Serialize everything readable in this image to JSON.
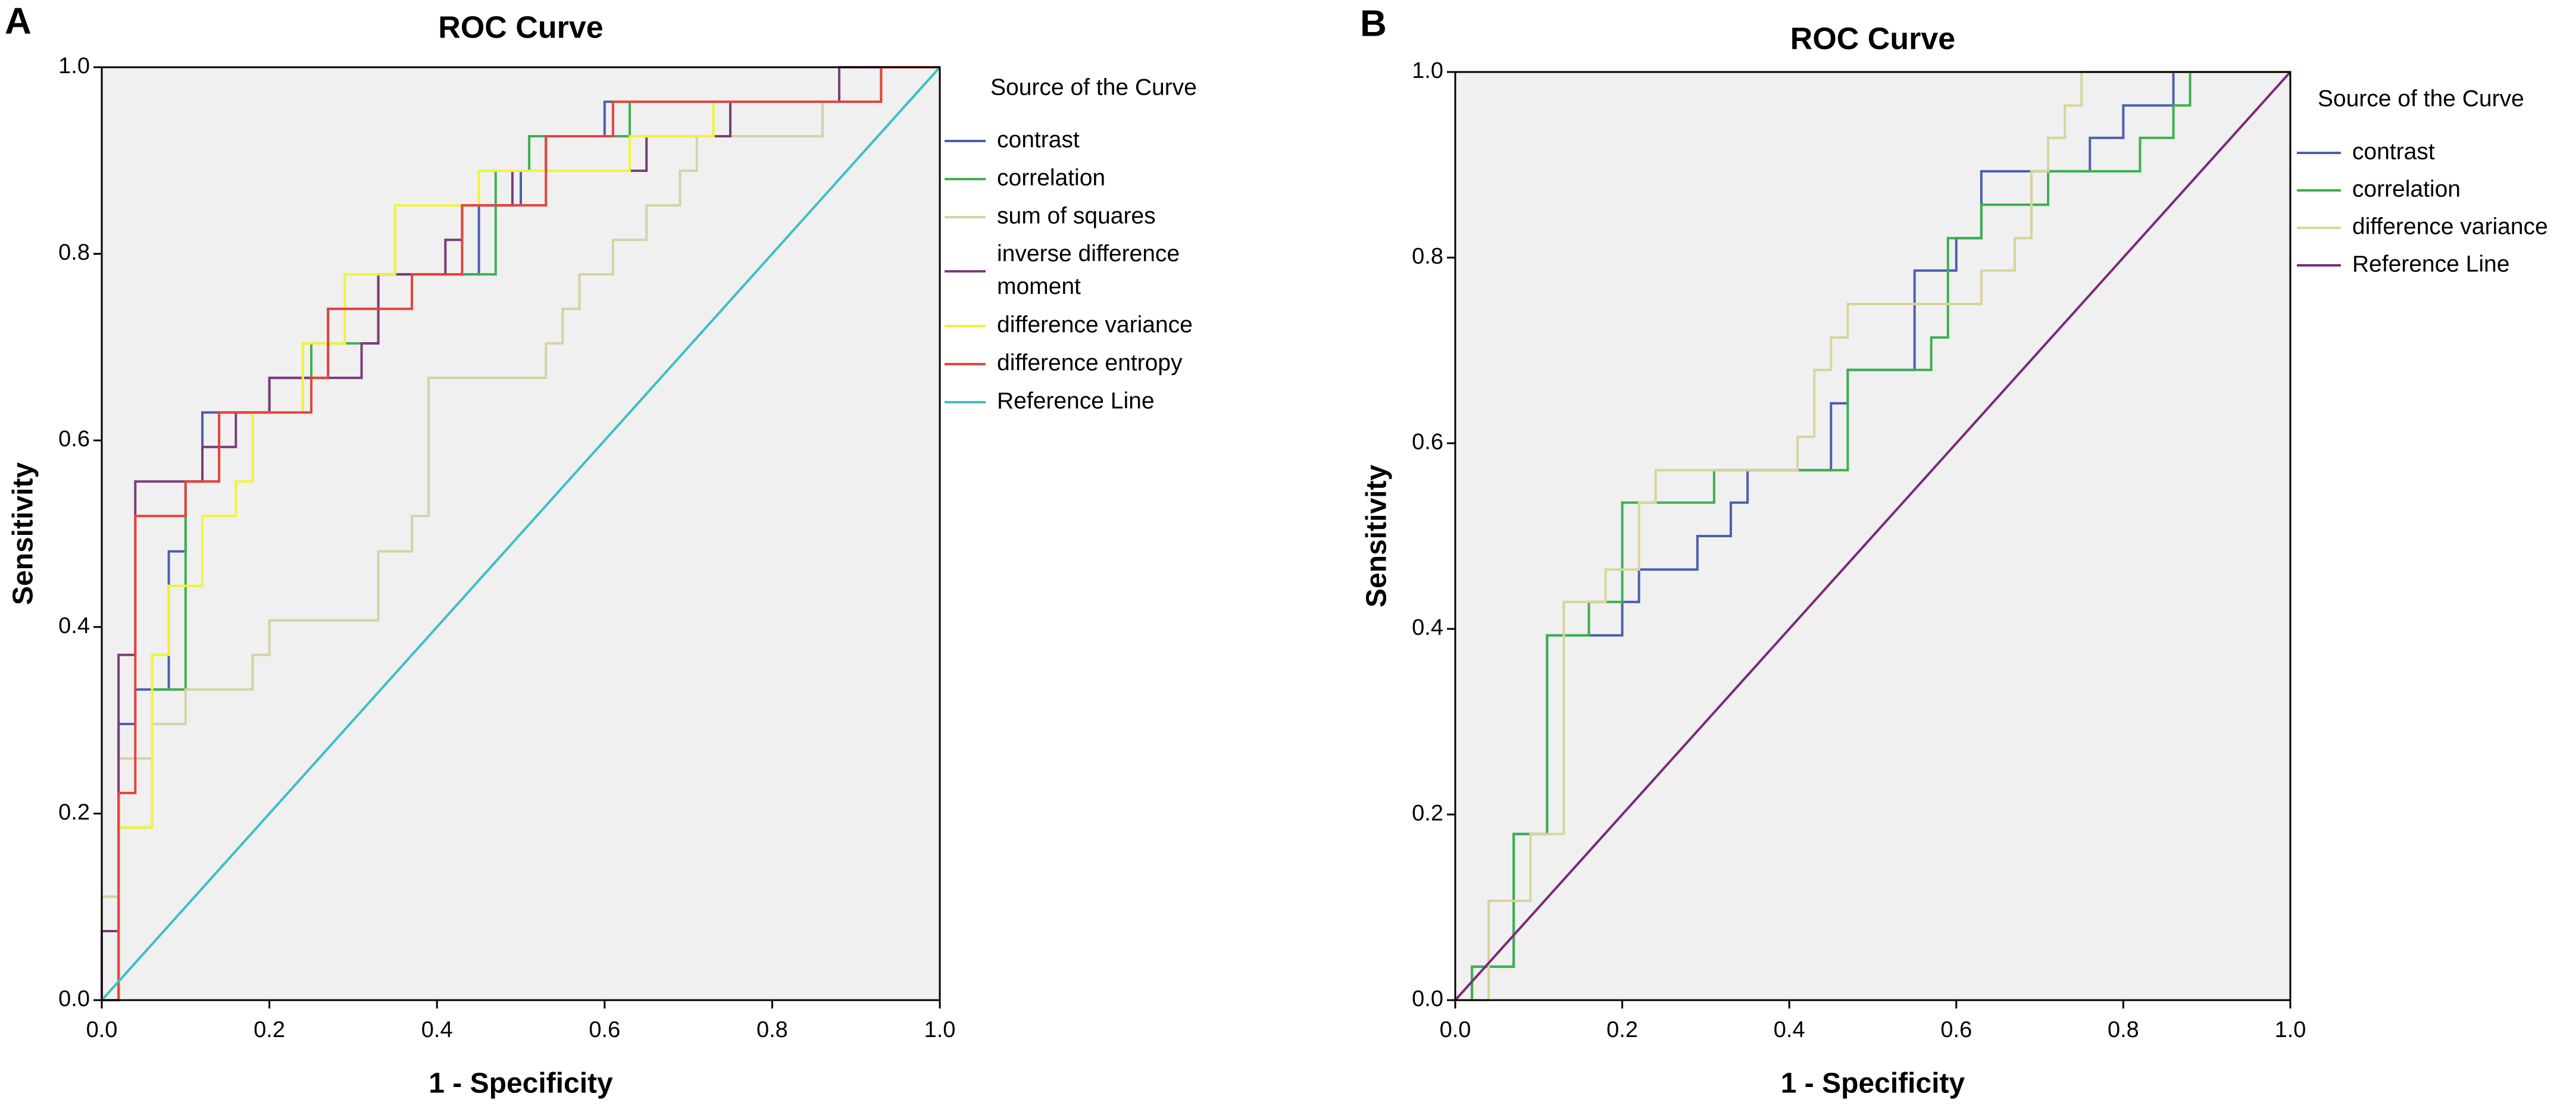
{
  "chart_data": [
    {
      "type": "line",
      "panel": "A",
      "title": "ROC Curve",
      "xlabel": "1 - Specificity",
      "ylabel": "Sensitivity",
      "legend_title": "Source of the Curve",
      "legend": "right",
      "grid": false,
      "xlim": [
        0,
        1
      ],
      "ylim": [
        0,
        1
      ],
      "xticks": [
        {
          "value": 0,
          "label": "0.0"
        },
        0.2,
        0.4,
        0.6,
        0.8,
        {
          "value": 1,
          "label": "1.0"
        }
      ],
      "yticks": [
        {
          "value": 0,
          "label": "0.0"
        },
        0.2,
        0.4,
        0.6,
        0.8,
        {
          "value": 1,
          "label": "1.0"
        }
      ],
      "series": [
        {
          "name": "contrast",
          "color": "#4a5fb0",
          "x": [
            0,
            0.02,
            0.02,
            0.04,
            0.04,
            0.08,
            0.08,
            0.1,
            0.1,
            0.12,
            0.12,
            0.2,
            0.2,
            0.27,
            0.27,
            0.33,
            0.33,
            0.45,
            0.45,
            0.5,
            0.5,
            0.53,
            0.53,
            0.6,
            0.6,
            0.93,
            0.93,
            1
          ],
          "values": [
            0,
            0,
            0.296,
            0.296,
            0.333,
            0.333,
            0.481,
            0.481,
            0.556,
            0.556,
            0.63,
            0.63,
            0.667,
            0.667,
            0.741,
            0.741,
            0.778,
            0.778,
            0.852,
            0.852,
            0.889,
            0.889,
            0.926,
            0.926,
            0.963,
            0.963,
            1,
            1
          ]
        },
        {
          "name": "correlation",
          "color": "#3cb050",
          "x": [
            0,
            0.02,
            0.02,
            0.06,
            0.06,
            0.1,
            0.1,
            0.14,
            0.14,
            0.2,
            0.2,
            0.25,
            0.25,
            0.33,
            0.33,
            0.47,
            0.47,
            0.51,
            0.51,
            0.63,
            0.63,
            0.93,
            0.93,
            1
          ],
          "values": [
            0,
            0,
            0.185,
            0.185,
            0.333,
            0.333,
            0.556,
            0.556,
            0.63,
            0.63,
            0.667,
            0.667,
            0.704,
            0.704,
            0.778,
            0.778,
            0.889,
            0.889,
            0.926,
            0.926,
            0.963,
            0.963,
            1,
            1
          ]
        },
        {
          "name": "sum of squares",
          "color": "#d6d2a4",
          "x": [
            0,
            0,
            0.02,
            0.02,
            0.06,
            0.06,
            0.1,
            0.1,
            0.18,
            0.18,
            0.2,
            0.2,
            0.33,
            0.33,
            0.37,
            0.37,
            0.39,
            0.39,
            0.53,
            0.53,
            0.55,
            0.55,
            0.57,
            0.57,
            0.61,
            0.61,
            0.65,
            0.65,
            0.69,
            0.69,
            0.71,
            0.71,
            0.86,
            0.86,
            0.93,
            0.93,
            1
          ],
          "values": [
            0,
            0.111,
            0.111,
            0.259,
            0.259,
            0.296,
            0.296,
            0.333,
            0.333,
            0.37,
            0.37,
            0.407,
            0.407,
            0.481,
            0.481,
            0.519,
            0.519,
            0.667,
            0.667,
            0.704,
            0.704,
            0.741,
            0.741,
            0.778,
            0.778,
            0.815,
            0.815,
            0.852,
            0.852,
            0.889,
            0.889,
            0.926,
            0.926,
            0.963,
            0.963,
            1,
            1
          ]
        },
        {
          "name": "inverse difference moment",
          "color": "#7a3c7a",
          "x": [
            0,
            0,
            0.02,
            0.02,
            0.04,
            0.04,
            0.12,
            0.12,
            0.16,
            0.16,
            0.2,
            0.2,
            0.31,
            0.31,
            0.33,
            0.33,
            0.41,
            0.41,
            0.43,
            0.43,
            0.49,
            0.49,
            0.65,
            0.65,
            0.75,
            0.75,
            0.88,
            0.88,
            1
          ],
          "values": [
            0,
            0.074,
            0.074,
            0.37,
            0.37,
            0.556,
            0.556,
            0.593,
            0.593,
            0.63,
            0.63,
            0.667,
            0.667,
            0.704,
            0.704,
            0.778,
            0.778,
            0.815,
            0.815,
            0.852,
            0.852,
            0.889,
            0.889,
            0.926,
            0.926,
            0.963,
            0.963,
            1,
            1
          ]
        },
        {
          "name": "difference variance",
          "color": "#f2f23a",
          "x": [
            0,
            0.02,
            0.02,
            0.06,
            0.06,
            0.08,
            0.08,
            0.12,
            0.12,
            0.16,
            0.16,
            0.18,
            0.18,
            0.24,
            0.24,
            0.29,
            0.29,
            0.35,
            0.35,
            0.45,
            0.45,
            0.63,
            0.63,
            0.73,
            0.73,
            0.93,
            0.93,
            1
          ],
          "values": [
            0,
            0,
            0.185,
            0.185,
            0.37,
            0.37,
            0.444,
            0.444,
            0.519,
            0.519,
            0.556,
            0.556,
            0.63,
            0.63,
            0.704,
            0.704,
            0.778,
            0.778,
            0.852,
            0.852,
            0.889,
            0.889,
            0.926,
            0.926,
            0.963,
            0.963,
            1,
            1
          ]
        },
        {
          "name": "difference entropy",
          "color": "#e8423c",
          "x": [
            0,
            0.02,
            0.02,
            0.04,
            0.04,
            0.1,
            0.1,
            0.14,
            0.14,
            0.25,
            0.25,
            0.27,
            0.27,
            0.37,
            0.37,
            0.43,
            0.43,
            0.53,
            0.53,
            0.61,
            0.61,
            0.93,
            0.93,
            1
          ],
          "values": [
            0,
            0,
            0.222,
            0.222,
            0.519,
            0.519,
            0.556,
            0.556,
            0.63,
            0.63,
            0.667,
            0.667,
            0.741,
            0.741,
            0.778,
            0.778,
            0.852,
            0.852,
            0.926,
            0.926,
            0.963,
            0.963,
            1,
            1
          ]
        },
        {
          "name": "Reference Line",
          "color": "#3cbfc4",
          "x": [
            0,
            1
          ],
          "values": [
            0,
            1
          ]
        }
      ]
    },
    {
      "type": "line",
      "panel": "B",
      "title": "ROC Curve",
      "xlabel": "1 - Specificity",
      "ylabel": "Sensitivity",
      "legend_title": "Source of the Curve",
      "legend": "right",
      "grid": false,
      "xlim": [
        0,
        1
      ],
      "ylim": [
        0,
        1
      ],
      "xticks": [
        {
          "value": 0,
          "label": "0.0"
        },
        0.2,
        0.4,
        0.6,
        0.8,
        {
          "value": 1,
          "label": "1.0"
        }
      ],
      "yticks": [
        {
          "value": 0,
          "label": "0.0"
        },
        0.2,
        0.4,
        0.6,
        0.8,
        {
          "value": 1,
          "label": "1.0"
        }
      ],
      "series": [
        {
          "name": "contrast",
          "color": "#4a5fb0",
          "x": [
            0,
            0.02,
            0.02,
            0.07,
            0.07,
            0.11,
            0.11,
            0.2,
            0.2,
            0.22,
            0.22,
            0.29,
            0.29,
            0.33,
            0.33,
            0.35,
            0.35,
            0.45,
            0.45,
            0.47,
            0.47,
            0.55,
            0.55,
            0.6,
            0.6,
            0.63,
            0.63,
            0.76,
            0.76,
            0.8,
            0.8,
            0.86,
            0.86,
            1
          ],
          "values": [
            0,
            0,
            0.036,
            0.036,
            0.179,
            0.179,
            0.393,
            0.393,
            0.429,
            0.429,
            0.464,
            0.464,
            0.5,
            0.5,
            0.536,
            0.536,
            0.571,
            0.571,
            0.643,
            0.643,
            0.679,
            0.679,
            0.786,
            0.786,
            0.821,
            0.821,
            0.893,
            0.893,
            0.929,
            0.929,
            0.964,
            0.964,
            1,
            1
          ]
        },
        {
          "name": "correlation",
          "color": "#3cb050",
          "x": [
            0,
            0.02,
            0.02,
            0.07,
            0.07,
            0.11,
            0.11,
            0.16,
            0.16,
            0.2,
            0.2,
            0.31,
            0.31,
            0.47,
            0.47,
            0.57,
            0.57,
            0.59,
            0.59,
            0.63,
            0.63,
            0.71,
            0.71,
            0.82,
            0.82,
            0.86,
            0.86,
            0.88,
            0.88,
            1
          ],
          "values": [
            0,
            0,
            0.036,
            0.036,
            0.179,
            0.179,
            0.393,
            0.393,
            0.429,
            0.429,
            0.536,
            0.536,
            0.571,
            0.571,
            0.679,
            0.679,
            0.714,
            0.714,
            0.821,
            0.821,
            0.857,
            0.857,
            0.893,
            0.893,
            0.929,
            0.929,
            0.964,
            0.964,
            1,
            1
          ]
        },
        {
          "name": "difference variance",
          "color": "#d8d49a",
          "x": [
            0,
            0.04,
            0.04,
            0.09,
            0.09,
            0.13,
            0.13,
            0.18,
            0.18,
            0.22,
            0.22,
            0.24,
            0.24,
            0.41,
            0.41,
            0.43,
            0.43,
            0.45,
            0.45,
            0.47,
            0.47,
            0.63,
            0.63,
            0.67,
            0.67,
            0.69,
            0.69,
            0.71,
            0.71,
            0.73,
            0.73,
            0.75,
            0.75,
            1
          ],
          "values": [
            0,
            0,
            0.107,
            0.107,
            0.179,
            0.179,
            0.429,
            0.429,
            0.464,
            0.464,
            0.536,
            0.536,
            0.571,
            0.571,
            0.607,
            0.607,
            0.679,
            0.679,
            0.714,
            0.714,
            0.75,
            0.75,
            0.786,
            0.786,
            0.821,
            0.821,
            0.893,
            0.893,
            0.929,
            0.929,
            0.964,
            0.964,
            1,
            1
          ]
        },
        {
          "name": "Reference Line",
          "color": "#7a2a7a",
          "x": [
            0,
            1
          ],
          "values": [
            0,
            1
          ]
        }
      ]
    }
  ]
}
